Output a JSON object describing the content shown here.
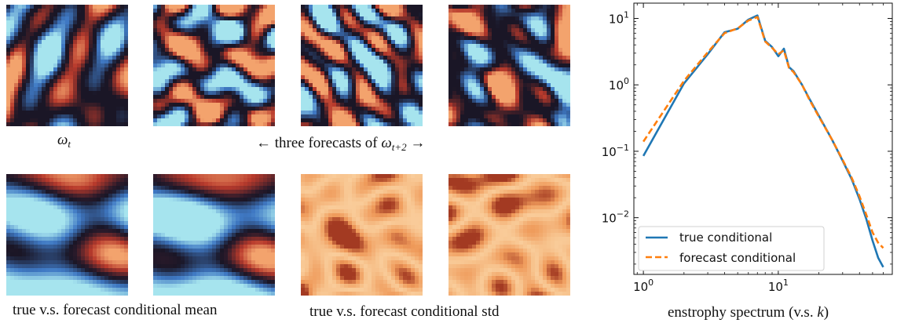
{
  "captions": {
    "omega_t": "ω",
    "omega_t_sub": "t",
    "forecasts_left": "← three forecasts of ",
    "forecasts_omega": "ω",
    "forecasts_sub": "t+2",
    "forecasts_right": " →",
    "conditional_mean": "true v.s. forecast conditional mean",
    "conditional_std": "true v.s. forecast conditional std"
  },
  "colors": {
    "vorticity_low": "#1a1626",
    "vorticity_blue": "#3f79c4",
    "vorticity_cyan": "#a6e4ee",
    "vorticity_red": "#b83a2c",
    "vorticity_orange": "#f3a36d",
    "std_light": "#fde0b6",
    "std_mid": "#ef9a5a",
    "std_dark": "#a33a22",
    "true_line": "#1f77b4",
    "forecast_line": "#ff7f0e"
  },
  "chart_data": {
    "type": "line",
    "title": "",
    "xlabel": "enstrophy spectrum (v.s. k)",
    "ylabel": "",
    "xscale": "log",
    "yscale": "log",
    "xlim": [
      0.85,
      70
    ],
    "ylim": [
      0.0014,
      17
    ],
    "xticks": [
      {
        "value": 1,
        "label": "10^0"
      },
      {
        "value": 10,
        "label": "10^1"
      }
    ],
    "yticks": [
      {
        "value": 0.01,
        "label": "10^-2"
      },
      {
        "value": 0.1,
        "label": "10^-1"
      },
      {
        "value": 1,
        "label": "10^0"
      },
      {
        "value": 10,
        "label": "10^1"
      }
    ],
    "legend_position": "lower-left",
    "series": [
      {
        "name": "true conditional",
        "style": "solid",
        "color": "#1f77b4",
        "x": [
          1,
          2,
          3,
          4,
          5,
          6,
          7,
          8,
          9,
          10,
          11,
          12,
          13,
          15,
          17,
          20,
          25,
          30,
          35,
          40,
          45,
          50,
          55,
          60
        ],
        "y": [
          0.085,
          1.05,
          2.9,
          6.2,
          7.0,
          9.6,
          11.1,
          4.6,
          3.7,
          2.7,
          3.5,
          1.85,
          1.6,
          1.0,
          0.62,
          0.34,
          0.15,
          0.072,
          0.038,
          0.019,
          0.0095,
          0.0045,
          0.0025,
          0.0018
        ]
      },
      {
        "name": "forecast conditional",
        "style": "dashed",
        "color": "#ff7f0e",
        "x": [
          1,
          2,
          3,
          4,
          5,
          6,
          7,
          8,
          9,
          10,
          11,
          12,
          13,
          15,
          17,
          20,
          25,
          30,
          35,
          40,
          45,
          50,
          55,
          60
        ],
        "y": [
          0.14,
          1.15,
          3.1,
          6.0,
          7.1,
          9.3,
          10.5,
          4.5,
          3.6,
          2.9,
          3.3,
          1.8,
          1.55,
          1.0,
          0.6,
          0.33,
          0.15,
          0.074,
          0.04,
          0.021,
          0.011,
          0.006,
          0.0042,
          0.0035
        ]
      }
    ]
  }
}
